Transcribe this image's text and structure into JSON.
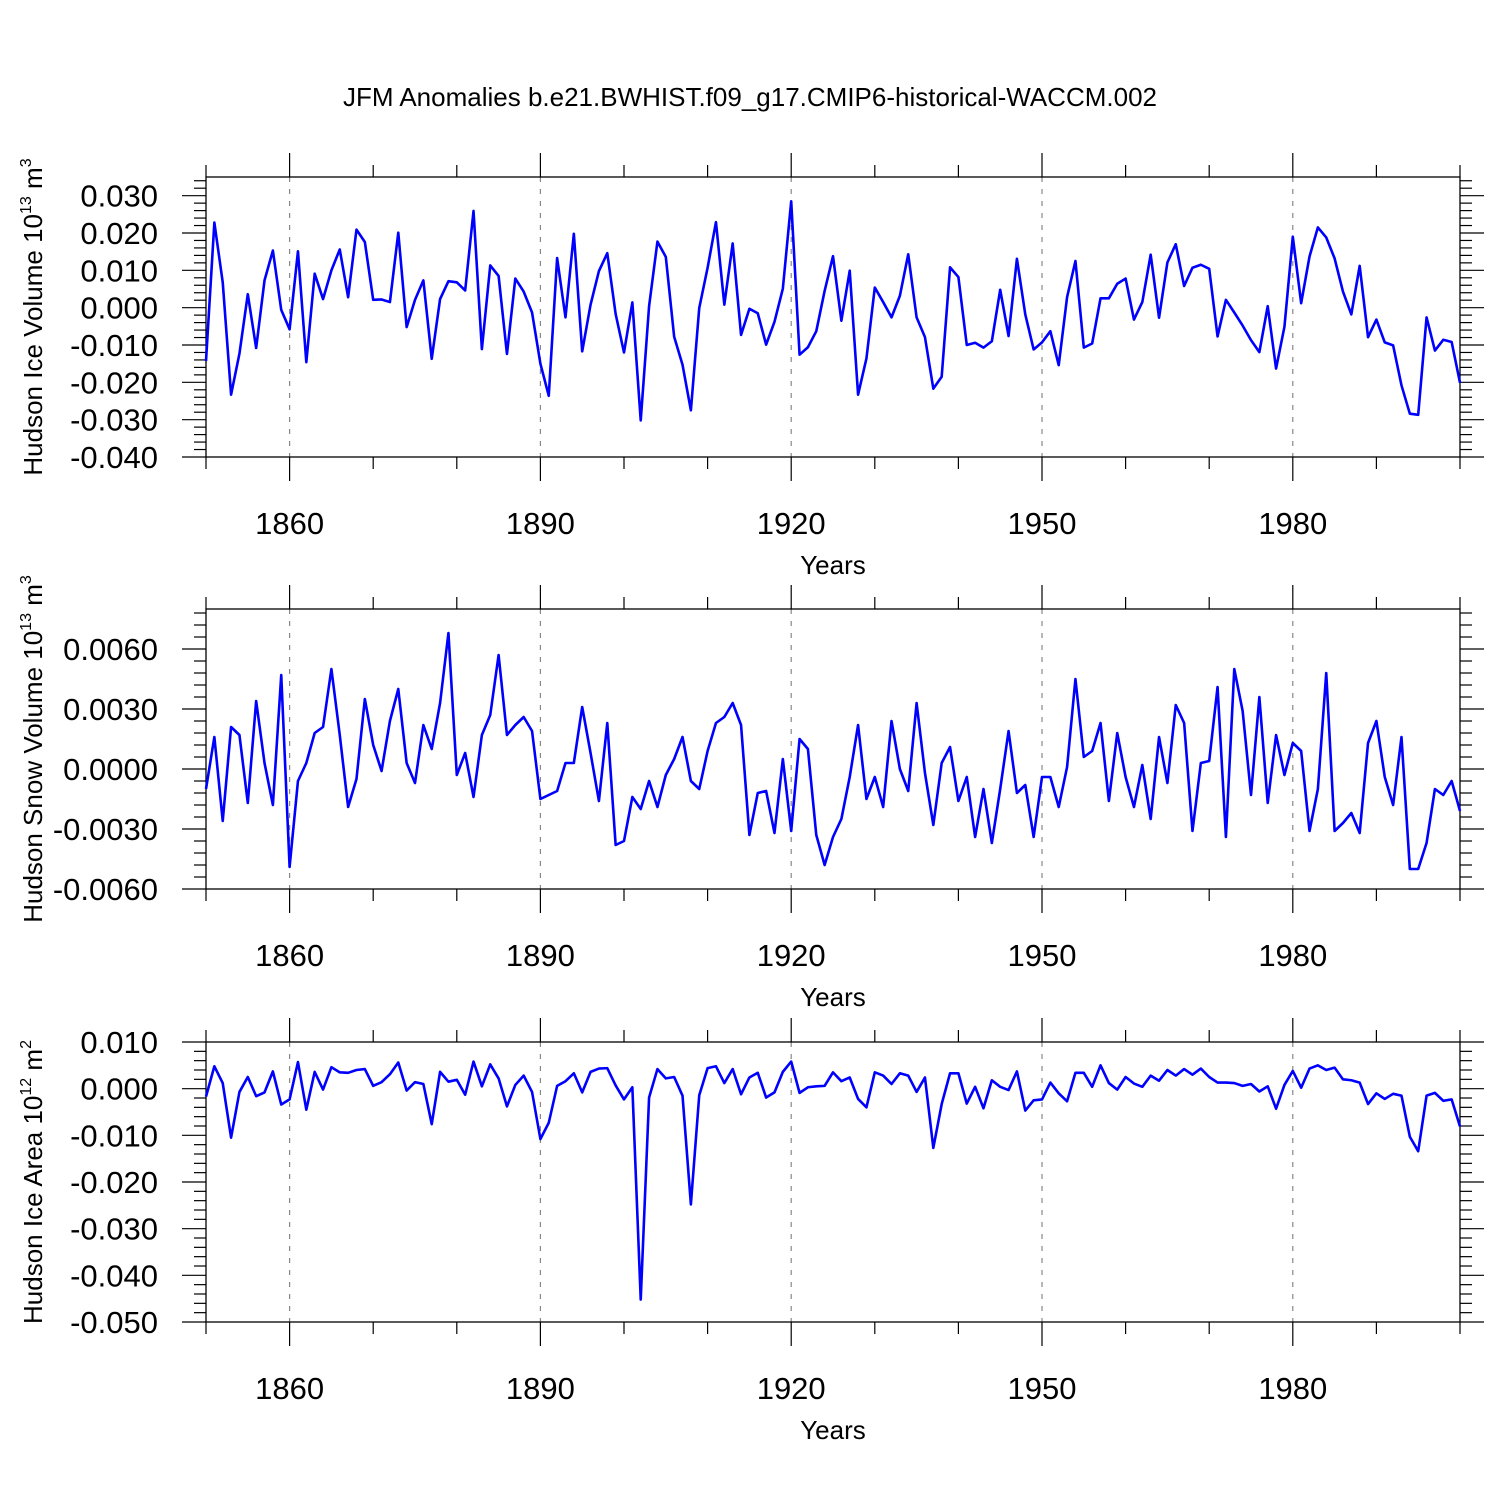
{
  "title": "JFM Anomalies b.e21.BWHIST.f09_g17.CMIP6-historical-WACCM.002",
  "colors": {
    "line": "#0000ff",
    "axis": "#000000",
    "grid": "#888888"
  },
  "chart_data": [
    {
      "type": "line",
      "name": "Hudson Ice Volume",
      "ylabel": {
        "text": "Hudson Ice Volume 10",
        "exp": "13",
        "unit": " m",
        "unit_exp": "3"
      },
      "xlabel": "Years",
      "xlim": [
        1850,
        2000
      ],
      "ylim": [
        -0.04,
        0.035
      ],
      "yticks": [
        -0.04,
        -0.03,
        -0.02,
        -0.01,
        0.0,
        0.01,
        0.02,
        0.03
      ],
      "ytick_labels": [
        "-0.040",
        "-0.030",
        "-0.020",
        "-0.010",
        "0.000",
        "0.010",
        "0.020",
        "0.030"
      ],
      "xticks": [
        1860,
        1890,
        1920,
        1950,
        1980
      ],
      "xtick_labels": [
        "1860",
        "1890",
        "1920",
        "1950",
        "1980"
      ],
      "grid_x": true,
      "x_start": 1850,
      "values": [
        -0.0143,
        0.0228,
        0.0068,
        -0.0233,
        -0.0123,
        0.0036,
        -0.0108,
        0.0073,
        0.0153,
        -0.0006,
        -0.0058,
        0.0151,
        -0.0146,
        0.0091,
        0.0023,
        0.01,
        0.0156,
        0.0028,
        0.0209,
        0.0176,
        0.0021,
        0.0022,
        0.0015,
        0.0201,
        -0.0052,
        0.0021,
        0.0073,
        -0.0137,
        0.0023,
        0.0071,
        0.0068,
        0.0046,
        0.0259,
        -0.0111,
        0.0113,
        0.0085,
        -0.0124,
        0.0078,
        0.0043,
        -0.0013,
        -0.015,
        -0.0236,
        0.0133,
        -0.0026,
        0.0198,
        -0.0117,
        0.0008,
        0.0098,
        0.0146,
        -0.0017,
        -0.012,
        0.0014,
        -0.0302,
        0.0004,
        0.0177,
        0.0136,
        -0.0078,
        -0.0153,
        -0.0275,
        -0.0001,
        0.0107,
        0.0229,
        0.0008,
        0.0172,
        -0.0073,
        -0.0003,
        -0.0015,
        -0.0099,
        -0.0038,
        0.0051,
        0.0285,
        -0.0126,
        -0.0106,
        -0.0063,
        0.0045,
        0.0138,
        -0.0035,
        0.0099,
        -0.0233,
        -0.0136,
        0.0054,
        0.0015,
        -0.0026,
        0.0032,
        0.0143,
        -0.0026,
        -0.0079,
        -0.0217,
        -0.0185,
        0.0108,
        0.0082,
        -0.01,
        -0.0094,
        -0.0107,
        -0.009,
        0.0048,
        -0.0076,
        0.0131,
        -0.0018,
        -0.0112,
        -0.0093,
        -0.0063,
        -0.0154,
        0.0028,
        0.0125,
        -0.0107,
        -0.0096,
        0.0025,
        0.0025,
        0.0064,
        0.0078,
        -0.0032,
        0.0015,
        0.0142,
        -0.0027,
        0.0121,
        0.017,
        0.0058,
        0.0107,
        0.0115,
        0.0104,
        -0.0077,
        0.0021,
        -0.0013,
        -0.0048,
        -0.0087,
        -0.0119,
        0.0004,
        -0.0163,
        -0.0051,
        0.019,
        0.0012,
        0.0137,
        0.0215,
        0.0188,
        0.0132,
        0.0043,
        -0.0018,
        0.0112,
        -0.0079,
        -0.0032,
        -0.0093,
        -0.0101,
        -0.0208,
        -0.0284,
        -0.0287,
        -0.0026,
        -0.0115,
        -0.0086,
        -0.0092,
        -0.0201
      ]
    },
    {
      "type": "line",
      "name": "Hudson Snow Volume",
      "ylabel": {
        "text": "Hudson Snow Volume 10",
        "exp": "13",
        "unit": " m",
        "unit_exp": "3"
      },
      "xlabel": "Years",
      "xlim": [
        1850,
        2000
      ],
      "ylim": [
        -0.006,
        0.008
      ],
      "yticks": [
        -0.006,
        -0.003,
        0.0,
        0.003,
        0.006
      ],
      "ytick_labels": [
        "-0.0060",
        "-0.0030",
        "0.0000",
        "0.0030",
        "0.0060"
      ],
      "xticks": [
        1860,
        1890,
        1920,
        1950,
        1980
      ],
      "xtick_labels": [
        "1860",
        "1890",
        "1920",
        "1950",
        "1980"
      ],
      "grid_x": true,
      "x_start": 1850,
      "values": [
        -0.001,
        0.0016,
        -0.0026,
        0.0021,
        0.0017,
        -0.0017,
        0.0034,
        0.0003,
        -0.0018,
        0.0047,
        -0.0049,
        -0.0006,
        0.0003,
        0.0018,
        0.0021,
        0.005,
        0.0017,
        -0.0019,
        -0.0005,
        0.0035,
        0.0012,
        -0.0001,
        0.0024,
        0.004,
        0.0003,
        -0.0007,
        0.0022,
        0.001,
        0.0033,
        0.0068,
        -0.0003,
        0.0008,
        -0.0014,
        0.0017,
        0.0027,
        0.0057,
        0.0017,
        0.0022,
        0.0026,
        0.0019,
        -0.0015,
        -0.0013,
        -0.0011,
        0.0003,
        0.0003,
        0.0031,
        0.0008,
        -0.0016,
        0.0023,
        -0.0038,
        -0.0036,
        -0.0014,
        -0.002,
        -0.0006,
        -0.0019,
        -0.0003,
        0.0005,
        0.0016,
        -0.0006,
        -0.001,
        0.0009,
        0.0023,
        0.0026,
        0.0033,
        0.0022,
        -0.0033,
        -0.0012,
        -0.0011,
        -0.0032,
        0.0005,
        -0.0031,
        0.0015,
        0.001,
        -0.0033,
        -0.0048,
        -0.0034,
        -0.0025,
        -0.0004,
        0.0022,
        -0.0015,
        -0.0004,
        -0.0019,
        0.0024,
        0.0,
        -0.0011,
        0.0033,
        -0.0002,
        -0.0028,
        0.0003,
        0.0011,
        -0.0016,
        -0.0004,
        -0.0034,
        -0.001,
        -0.0037,
        -0.001,
        0.0019,
        -0.0012,
        -0.0008,
        -0.0034,
        -0.0004,
        -0.0004,
        -0.0019,
        0.0001,
        0.0045,
        0.0006,
        0.0009,
        0.0023,
        -0.0016,
        0.0018,
        -0.0004,
        -0.0019,
        0.0002,
        -0.0025,
        0.0016,
        -0.0007,
        0.0032,
        0.0023,
        -0.0031,
        0.0003,
        0.0004,
        0.0041,
        -0.0034,
        0.005,
        0.0029,
        -0.0013,
        0.0036,
        -0.0017,
        0.0017,
        -0.0003,
        0.0013,
        0.0009,
        -0.0031,
        -0.001,
        0.0048,
        -0.0031,
        -0.0027,
        -0.0022,
        -0.0032,
        0.0013,
        0.0024,
        -0.0004,
        -0.0018,
        0.0016,
        -0.005,
        -0.005,
        -0.0037,
        -0.001,
        -0.0013,
        -0.0006,
        -0.0021
      ]
    },
    {
      "type": "line",
      "name": "Hudson Ice Area",
      "ylabel": {
        "text": "Hudson Ice Area 10",
        "exp": "12",
        "unit": " m",
        "unit_exp": "2"
      },
      "xlabel": "Years",
      "xlim": [
        1850,
        2000
      ],
      "ylim": [
        -0.05,
        0.01
      ],
      "yticks": [
        -0.05,
        -0.04,
        -0.03,
        -0.02,
        -0.01,
        0.0,
        0.01
      ],
      "ytick_labels": [
        "-0.050",
        "-0.040",
        "-0.030",
        "-0.020",
        "-0.010",
        "0.000",
        "0.010"
      ],
      "xticks": [
        1860,
        1890,
        1920,
        1950,
        1980
      ],
      "xtick_labels": [
        "1860",
        "1890",
        "1920",
        "1950",
        "1980"
      ],
      "grid_x": true,
      "x_start": 1850,
      "values": [
        -0.0017,
        0.0048,
        0.0012,
        -0.0105,
        -0.0007,
        0.0025,
        -0.0016,
        -0.0008,
        0.0037,
        -0.0034,
        -0.0023,
        0.0057,
        -0.0045,
        0.0036,
        -0.0002,
        0.0046,
        0.0035,
        0.0034,
        0.004,
        0.0042,
        0.0006,
        0.0014,
        0.0031,
        0.0056,
        -0.0004,
        0.0014,
        0.001,
        -0.0076,
        0.0036,
        0.0015,
        0.0019,
        -0.0013,
        0.0058,
        0.0005,
        0.0052,
        0.0022,
        -0.0038,
        0.0008,
        0.0028,
        -0.0007,
        -0.0108,
        -0.0073,
        0.0006,
        0.0016,
        0.0033,
        -0.0008,
        0.0036,
        0.0043,
        0.0044,
        0.0007,
        -0.0023,
        0.0003,
        -0.0452,
        -0.0019,
        0.0042,
        0.0022,
        0.0025,
        -0.0015,
        -0.0248,
        -0.0014,
        0.0044,
        0.0048,
        0.0012,
        0.0042,
        -0.0012,
        0.0024,
        0.0034,
        -0.0019,
        -0.0008,
        0.0036,
        0.0058,
        -0.0009,
        0.0003,
        0.0005,
        0.0006,
        0.0035,
        0.0016,
        0.0024,
        -0.0022,
        -0.004,
        0.0035,
        0.0028,
        0.001,
        0.0033,
        0.0028,
        -0.0007,
        0.0024,
        -0.0127,
        -0.0033,
        0.0033,
        0.0033,
        -0.0032,
        0.0004,
        -0.0042,
        0.0018,
        0.0004,
        -0.0003,
        0.0037,
        -0.0047,
        -0.0025,
        -0.0023,
        0.0013,
        -0.001,
        -0.0027,
        0.0034,
        0.0034,
        0.0004,
        0.005,
        0.0012,
        -0.0002,
        0.0025,
        0.0011,
        0.0004,
        0.0028,
        0.0017,
        0.004,
        0.0028,
        0.0042,
        0.003,
        0.0043,
        0.0025,
        0.0013,
        0.0013,
        0.0012,
        0.0006,
        0.001,
        -0.0006,
        0.0005,
        -0.0043,
        0.0008,
        0.0038,
        0.0002,
        0.0043,
        0.005,
        0.004,
        0.0045,
        0.002,
        0.0018,
        0.0013,
        -0.0033,
        -0.001,
        -0.0022,
        -0.0011,
        -0.0015,
        -0.0103,
        -0.0134,
        -0.0015,
        -0.0009,
        -0.0026,
        -0.0023,
        -0.0081
      ]
    }
  ]
}
